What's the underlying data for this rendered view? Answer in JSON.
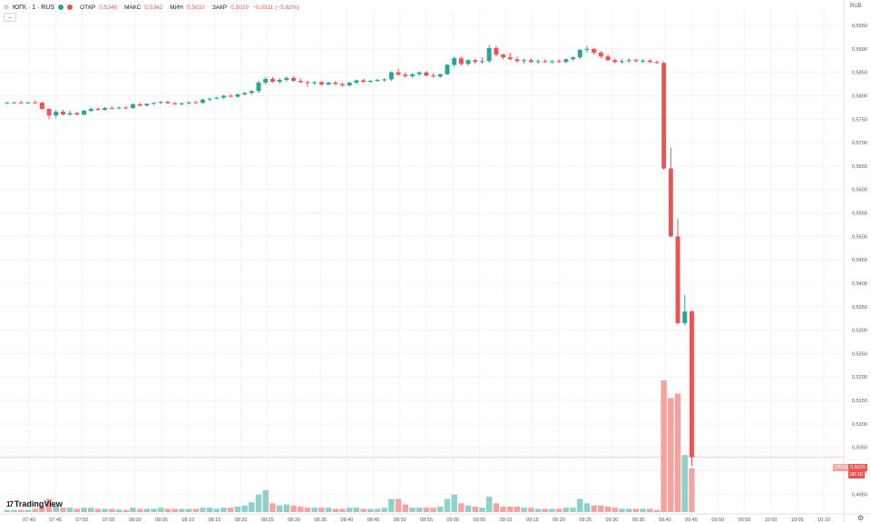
{
  "header": {
    "symbol": "ЮГК · 1 · RUS",
    "open_label": "ОТКР",
    "open_value": "0,5340",
    "high_label": "МАКС",
    "high_value": "0,5342",
    "low_label": "МИН",
    "low_value": "0,5010",
    "close_label": "ЗАКР",
    "close_value": "0,5029",
    "change_value": "−0,0311 (−5,82%)",
    "collapse_icon": "chevron-down-icon"
  },
  "currency_label": "RUB",
  "brand": {
    "name": "TradingView",
    "icon": "tv-logo-icon"
  },
  "settings_icon": "gear-icon",
  "price_tags": {
    "volume_tag": "ОБЪЁМ",
    "last_price": "0,5029",
    "last_time": "00:10"
  },
  "colors": {
    "up": "#26a69a",
    "down": "#ef5350",
    "up_volume": "#8fd0c9",
    "down_volume": "#f4a3a1",
    "grid": "#f0f3fa",
    "last_line": "#ef5350"
  },
  "chart_data": {
    "type": "candlestick",
    "title": "",
    "x_ticks": [
      "07:40",
      "07:45",
      "07:50",
      "07:55",
      "08:00",
      "08:05",
      "08:10",
      "08:15",
      "08:20",
      "08:25",
      "08:30",
      "08:35",
      "08:40",
      "08:45",
      "08:50",
      "08:55",
      "09:00",
      "09:05",
      "09:10",
      "09:15",
      "09:20",
      "09:25",
      "09:30",
      "09:35",
      "09:40",
      "09:45",
      "09:50",
      "09:55",
      "10:00",
      "10:05",
      "10:10"
    ],
    "y_ticks": [
      "0,5950",
      "0,5900",
      "0,5850",
      "0,5800",
      "0,5750",
      "0,5700",
      "0,5650",
      "0,5600",
      "0,5550",
      "0,5500",
      "0,5450",
      "0,5400",
      "0,5350",
      "0,5300",
      "0,5250",
      "0,5200",
      "0,5150",
      "0,5100",
      "0,5050",
      "0,5000",
      "0,4950"
    ],
    "ylim": [
      0.4935,
      0.5985
    ],
    "candles": [
      {
        "o": 0.5785,
        "h": 0.5788,
        "l": 0.5783,
        "c": 0.5785,
        "v": 10
      },
      {
        "o": 0.5785,
        "h": 0.5787,
        "l": 0.5784,
        "c": 0.5786,
        "v": 10
      },
      {
        "o": 0.5786,
        "h": 0.5789,
        "l": 0.5784,
        "c": 0.5784,
        "v": 10
      },
      {
        "o": 0.5784,
        "h": 0.5787,
        "l": 0.5783,
        "c": 0.5786,
        "v": 10
      },
      {
        "o": 0.5786,
        "h": 0.579,
        "l": 0.5784,
        "c": 0.5785,
        "v": 15
      },
      {
        "o": 0.5785,
        "h": 0.5787,
        "l": 0.577,
        "c": 0.5772,
        "v": 25
      },
      {
        "o": 0.5772,
        "h": 0.5774,
        "l": 0.575,
        "c": 0.5758,
        "v": 60
      },
      {
        "o": 0.5758,
        "h": 0.577,
        "l": 0.5752,
        "c": 0.5766,
        "v": 30
      },
      {
        "o": 0.5766,
        "h": 0.577,
        "l": 0.5758,
        "c": 0.576,
        "v": 20
      },
      {
        "o": 0.576,
        "h": 0.5768,
        "l": 0.5757,
        "c": 0.5763,
        "v": 20
      },
      {
        "o": 0.5763,
        "h": 0.5766,
        "l": 0.5758,
        "c": 0.576,
        "v": 15
      },
      {
        "o": 0.576,
        "h": 0.577,
        "l": 0.5758,
        "c": 0.5768,
        "v": 20
      },
      {
        "o": 0.5768,
        "h": 0.5775,
        "l": 0.5765,
        "c": 0.5772,
        "v": 20
      },
      {
        "o": 0.5772,
        "h": 0.5776,
        "l": 0.5768,
        "c": 0.577,
        "v": 15
      },
      {
        "o": 0.577,
        "h": 0.5776,
        "l": 0.5768,
        "c": 0.5774,
        "v": 15
      },
      {
        "o": 0.5774,
        "h": 0.5778,
        "l": 0.5771,
        "c": 0.5773,
        "v": 15
      },
      {
        "o": 0.5773,
        "h": 0.5777,
        "l": 0.5771,
        "c": 0.5775,
        "v": 12
      },
      {
        "o": 0.5775,
        "h": 0.5778,
        "l": 0.5772,
        "c": 0.5774,
        "v": 10
      },
      {
        "o": 0.5774,
        "h": 0.5784,
        "l": 0.5772,
        "c": 0.5782,
        "v": 20
      },
      {
        "o": 0.5782,
        "h": 0.5786,
        "l": 0.5777,
        "c": 0.5779,
        "v": 15
      },
      {
        "o": 0.5779,
        "h": 0.5784,
        "l": 0.5777,
        "c": 0.5783,
        "v": 15
      },
      {
        "o": 0.5783,
        "h": 0.5786,
        "l": 0.578,
        "c": 0.5785,
        "v": 15
      },
      {
        "o": 0.5785,
        "h": 0.5789,
        "l": 0.5782,
        "c": 0.5787,
        "v": 20
      },
      {
        "o": 0.5787,
        "h": 0.579,
        "l": 0.5783,
        "c": 0.5784,
        "v": 15
      },
      {
        "o": 0.5784,
        "h": 0.5787,
        "l": 0.5781,
        "c": 0.5782,
        "v": 15
      },
      {
        "o": 0.5782,
        "h": 0.5786,
        "l": 0.578,
        "c": 0.5784,
        "v": 15
      },
      {
        "o": 0.5784,
        "h": 0.5788,
        "l": 0.5781,
        "c": 0.5786,
        "v": 15
      },
      {
        "o": 0.5786,
        "h": 0.579,
        "l": 0.5784,
        "c": 0.5785,
        "v": 15
      },
      {
        "o": 0.5785,
        "h": 0.5794,
        "l": 0.5783,
        "c": 0.5792,
        "v": 20
      },
      {
        "o": 0.5792,
        "h": 0.5796,
        "l": 0.5788,
        "c": 0.5794,
        "v": 20
      },
      {
        "o": 0.5794,
        "h": 0.5798,
        "l": 0.5792,
        "c": 0.5796,
        "v": 15
      },
      {
        "o": 0.5796,
        "h": 0.5802,
        "l": 0.5793,
        "c": 0.58,
        "v": 20
      },
      {
        "o": 0.58,
        "h": 0.5804,
        "l": 0.5796,
        "c": 0.5798,
        "v": 20
      },
      {
        "o": 0.5798,
        "h": 0.5805,
        "l": 0.5796,
        "c": 0.5803,
        "v": 25
      },
      {
        "o": 0.5803,
        "h": 0.5808,
        "l": 0.5801,
        "c": 0.5806,
        "v": 30
      },
      {
        "o": 0.5806,
        "h": 0.5812,
        "l": 0.5802,
        "c": 0.581,
        "v": 45
      },
      {
        "o": 0.581,
        "h": 0.5832,
        "l": 0.5806,
        "c": 0.5828,
        "v": 80
      },
      {
        "o": 0.5828,
        "h": 0.584,
        "l": 0.5824,
        "c": 0.5836,
        "v": 100
      },
      {
        "o": 0.5836,
        "h": 0.584,
        "l": 0.5828,
        "c": 0.583,
        "v": 40
      },
      {
        "o": 0.583,
        "h": 0.5838,
        "l": 0.5826,
        "c": 0.5834,
        "v": 30
      },
      {
        "o": 0.5834,
        "h": 0.5841,
        "l": 0.583,
        "c": 0.5838,
        "v": 35
      },
      {
        "o": 0.5838,
        "h": 0.5842,
        "l": 0.583,
        "c": 0.5832,
        "v": 30
      },
      {
        "o": 0.5832,
        "h": 0.5838,
        "l": 0.5827,
        "c": 0.5829,
        "v": 25
      },
      {
        "o": 0.5829,
        "h": 0.5833,
        "l": 0.5819,
        "c": 0.5827,
        "v": 20
      },
      {
        "o": 0.5827,
        "h": 0.5831,
        "l": 0.5823,
        "c": 0.5829,
        "v": 20
      },
      {
        "o": 0.5829,
        "h": 0.5832,
        "l": 0.5822,
        "c": 0.5824,
        "v": 20
      },
      {
        "o": 0.5824,
        "h": 0.583,
        "l": 0.5822,
        "c": 0.5828,
        "v": 20
      },
      {
        "o": 0.5828,
        "h": 0.5832,
        "l": 0.5823,
        "c": 0.5825,
        "v": 15
      },
      {
        "o": 0.5825,
        "h": 0.5828,
        "l": 0.5819,
        "c": 0.5822,
        "v": 15
      },
      {
        "o": 0.5822,
        "h": 0.583,
        "l": 0.582,
        "c": 0.5828,
        "v": 20
      },
      {
        "o": 0.5828,
        "h": 0.5835,
        "l": 0.5825,
        "c": 0.5833,
        "v": 20
      },
      {
        "o": 0.5833,
        "h": 0.5836,
        "l": 0.5828,
        "c": 0.583,
        "v": 15
      },
      {
        "o": 0.583,
        "h": 0.5834,
        "l": 0.5827,
        "c": 0.5832,
        "v": 15
      },
      {
        "o": 0.5832,
        "h": 0.5836,
        "l": 0.5829,
        "c": 0.5834,
        "v": 15
      },
      {
        "o": 0.5834,
        "h": 0.5838,
        "l": 0.583,
        "c": 0.5835,
        "v": 20
      },
      {
        "o": 0.5835,
        "h": 0.5852,
        "l": 0.5832,
        "c": 0.585,
        "v": 60
      },
      {
        "o": 0.585,
        "h": 0.5858,
        "l": 0.5843,
        "c": 0.5845,
        "v": 60
      },
      {
        "o": 0.5845,
        "h": 0.585,
        "l": 0.5838,
        "c": 0.5842,
        "v": 35
      },
      {
        "o": 0.5842,
        "h": 0.5848,
        "l": 0.5838,
        "c": 0.5846,
        "v": 20
      },
      {
        "o": 0.5846,
        "h": 0.5852,
        "l": 0.5842,
        "c": 0.585,
        "v": 20
      },
      {
        "o": 0.585,
        "h": 0.5853,
        "l": 0.5841,
        "c": 0.5843,
        "v": 20
      },
      {
        "o": 0.5843,
        "h": 0.5848,
        "l": 0.5839,
        "c": 0.5841,
        "v": 20
      },
      {
        "o": 0.5841,
        "h": 0.5848,
        "l": 0.5838,
        "c": 0.5846,
        "v": 25
      },
      {
        "o": 0.5846,
        "h": 0.5868,
        "l": 0.5844,
        "c": 0.5866,
        "v": 60
      },
      {
        "o": 0.5866,
        "h": 0.5884,
        "l": 0.5862,
        "c": 0.588,
        "v": 80
      },
      {
        "o": 0.588,
        "h": 0.5884,
        "l": 0.5865,
        "c": 0.5868,
        "v": 40
      },
      {
        "o": 0.5868,
        "h": 0.5878,
        "l": 0.5864,
        "c": 0.5876,
        "v": 30
      },
      {
        "o": 0.5876,
        "h": 0.588,
        "l": 0.5868,
        "c": 0.5872,
        "v": 25
      },
      {
        "o": 0.5872,
        "h": 0.5882,
        "l": 0.5868,
        "c": 0.5874,
        "v": 20
      },
      {
        "o": 0.5874,
        "h": 0.5908,
        "l": 0.587,
        "c": 0.5902,
        "v": 70
      },
      {
        "o": 0.5902,
        "h": 0.5906,
        "l": 0.5884,
        "c": 0.5888,
        "v": 40
      },
      {
        "o": 0.5888,
        "h": 0.589,
        "l": 0.5878,
        "c": 0.5882,
        "v": 25
      },
      {
        "o": 0.5882,
        "h": 0.5892,
        "l": 0.5876,
        "c": 0.5878,
        "v": 25
      },
      {
        "o": 0.5878,
        "h": 0.5884,
        "l": 0.587,
        "c": 0.5874,
        "v": 25
      },
      {
        "o": 0.5874,
        "h": 0.588,
        "l": 0.5868,
        "c": 0.5876,
        "v": 20
      },
      {
        "o": 0.5876,
        "h": 0.588,
        "l": 0.587,
        "c": 0.5872,
        "v": 20
      },
      {
        "o": 0.5872,
        "h": 0.5878,
        "l": 0.5868,
        "c": 0.5874,
        "v": 15
      },
      {
        "o": 0.5874,
        "h": 0.5878,
        "l": 0.587,
        "c": 0.5872,
        "v": 15
      },
      {
        "o": 0.5872,
        "h": 0.5876,
        "l": 0.5868,
        "c": 0.5874,
        "v": 15
      },
      {
        "o": 0.5874,
        "h": 0.5878,
        "l": 0.587,
        "c": 0.5872,
        "v": 15
      },
      {
        "o": 0.5872,
        "h": 0.588,
        "l": 0.5869,
        "c": 0.5878,
        "v": 20
      },
      {
        "o": 0.5878,
        "h": 0.5884,
        "l": 0.5874,
        "c": 0.5882,
        "v": 20
      },
      {
        "o": 0.5882,
        "h": 0.59,
        "l": 0.5878,
        "c": 0.5898,
        "v": 60
      },
      {
        "o": 0.5898,
        "h": 0.5906,
        "l": 0.5892,
        "c": 0.59,
        "v": 40
      },
      {
        "o": 0.59,
        "h": 0.5902,
        "l": 0.5888,
        "c": 0.5892,
        "v": 30
      },
      {
        "o": 0.5892,
        "h": 0.5896,
        "l": 0.588,
        "c": 0.5884,
        "v": 30
      },
      {
        "o": 0.5884,
        "h": 0.5888,
        "l": 0.5874,
        "c": 0.5876,
        "v": 25
      },
      {
        "o": 0.5876,
        "h": 0.588,
        "l": 0.5868,
        "c": 0.5872,
        "v": 20
      },
      {
        "o": 0.5872,
        "h": 0.5878,
        "l": 0.5868,
        "c": 0.5874,
        "v": 15
      },
      {
        "o": 0.5874,
        "h": 0.588,
        "l": 0.587,
        "c": 0.5876,
        "v": 15
      },
      {
        "o": 0.5876,
        "h": 0.588,
        "l": 0.5871,
        "c": 0.5874,
        "v": 15
      },
      {
        "o": 0.5874,
        "h": 0.5878,
        "l": 0.587,
        "c": 0.5875,
        "v": 15
      },
      {
        "o": 0.5875,
        "h": 0.5878,
        "l": 0.587,
        "c": 0.5872,
        "v": 15
      },
      {
        "o": 0.5872,
        "h": 0.5876,
        "l": 0.5868,
        "c": 0.587,
        "v": 10
      },
      {
        "o": 0.587,
        "h": 0.5874,
        "l": 0.5642,
        "c": 0.5645,
        "v": 600
      },
      {
        "o": 0.5645,
        "h": 0.569,
        "l": 0.5498,
        "c": 0.55,
        "v": 520
      },
      {
        "o": 0.55,
        "h": 0.5538,
        "l": 0.5312,
        "c": 0.5315,
        "v": 540
      },
      {
        "o": 0.5315,
        "h": 0.5375,
        "l": 0.531,
        "c": 0.534,
        "v": 260
      },
      {
        "o": 0.534,
        "h": 0.5342,
        "l": 0.501,
        "c": 0.5029,
        "v": 200
      }
    ]
  }
}
